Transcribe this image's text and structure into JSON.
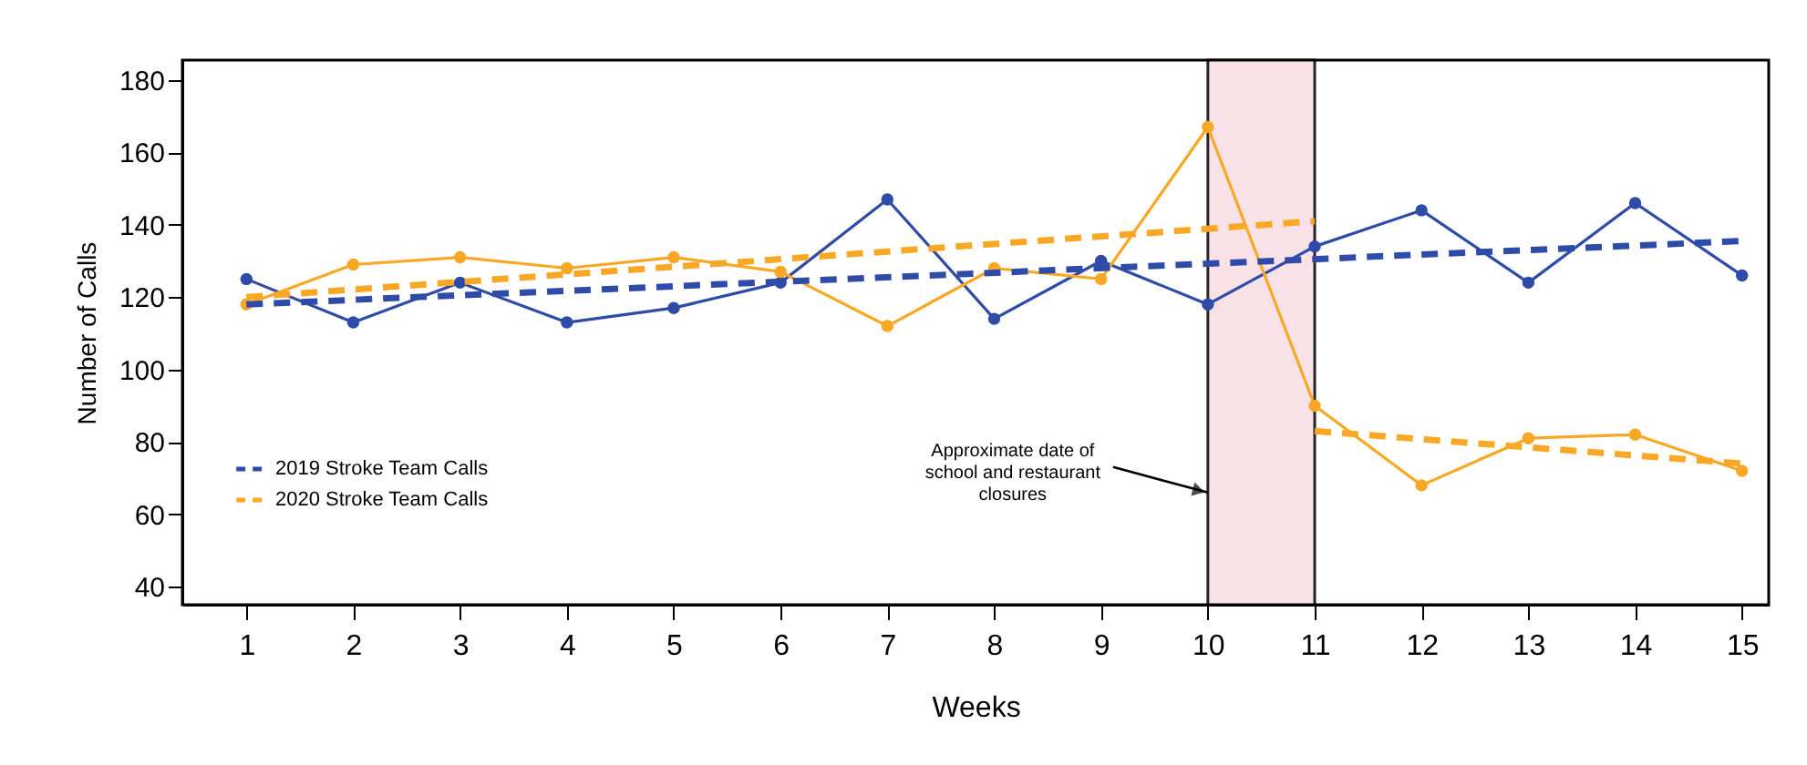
{
  "chart_data": {
    "type": "line",
    "xlabel": "Weeks",
    "ylabel": "Number of Calls",
    "x": [
      1,
      2,
      3,
      4,
      5,
      6,
      7,
      8,
      9,
      10,
      11,
      12,
      13,
      14,
      15
    ],
    "series": [
      {
        "color": "#2f4ba8",
        "marker": "circle",
        "line_style": "solid",
        "values": [
          125,
          113,
          124,
          113,
          117,
          124,
          147,
          114,
          130,
          118,
          134,
          144,
          124,
          146,
          126
        ]
      },
      {
        "color": "#f9a825",
        "marker": "circle",
        "line_style": "solid",
        "values": [
          118,
          129,
          131,
          128,
          131,
          127,
          112,
          128,
          125,
          167,
          90,
          68,
          81,
          82,
          72
        ]
      },
      {
        "name": "2019 Stroke Team Calls",
        "color": "#2f4ba8",
        "marker": "none",
        "line_style": "dashed",
        "x": [
          1,
          15
        ],
        "values": [
          118,
          135.5
        ]
      },
      {
        "name": "2020 Stroke Team Calls",
        "color": "#f9a825",
        "marker": "none",
        "line_style": "dashed",
        "x": [
          1,
          11
        ],
        "values": [
          120,
          141
        ]
      },
      {
        "color": "#f9a825",
        "marker": "none",
        "line_style": "dashed",
        "x": [
          11,
          15
        ],
        "values": [
          83,
          74
        ]
      }
    ],
    "xlim": [
      0.4,
      15.25
    ],
    "ylim": [
      35,
      185.5
    ],
    "xticks": [
      1,
      2,
      3,
      4,
      5,
      6,
      7,
      8,
      9,
      10,
      11,
      12,
      13,
      14,
      15
    ],
    "yticks": [
      40,
      60,
      80,
      100,
      120,
      140,
      160,
      180
    ],
    "bands": [
      {
        "axis": "x",
        "from": 10,
        "to": 11,
        "color": "#f9dde3"
      }
    ],
    "annotations": [
      {
        "text": "Approximate date of\nschool and restaurant\nclosures",
        "x": 10,
        "y": 66
      }
    ],
    "legend": "bottom left",
    "grid": false
  }
}
